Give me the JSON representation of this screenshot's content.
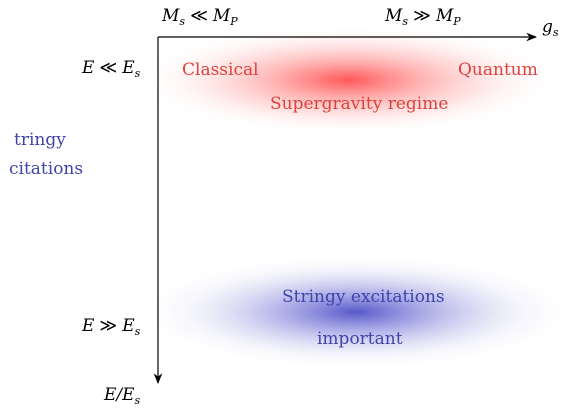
{
  "top_axis": {
    "left_label": {
      "base": "M",
      "sub1": "s",
      "op": "≪",
      "base2": "M",
      "sub2": "P"
    },
    "right_label": {
      "base": "M",
      "sub1": "s",
      "op": "≫",
      "base2": "M",
      "sub2": "P"
    },
    "end_label": {
      "base": "g",
      "sub": "s"
    }
  },
  "left_axis": {
    "top_label": {
      "base": "E",
      "op": "≪",
      "base2": "E",
      "sub2": "s"
    },
    "bottom_label": {
      "base": "E",
      "op": "≫",
      "base2": "E",
      "sub2": "s"
    },
    "end_label": {
      "base": "E/E",
      "sub": "s"
    }
  },
  "side_text": {
    "line1": "tringy",
    "line2": "citations"
  },
  "regions": {
    "supergravity": {
      "left": "Classical",
      "right": "Quantum",
      "center": "Supergravity regime",
      "color": "#e8403a"
    },
    "stringy": {
      "line1": "Stringy excitations",
      "line2": "important",
      "color": "#4a4fb0"
    }
  },
  "colors": {
    "axis": "#000000",
    "red_text": "#e0403a",
    "blue_text": "#3f44a8",
    "red_glow": "#ff3030",
    "blue_glow": "#3c3cc0"
  }
}
